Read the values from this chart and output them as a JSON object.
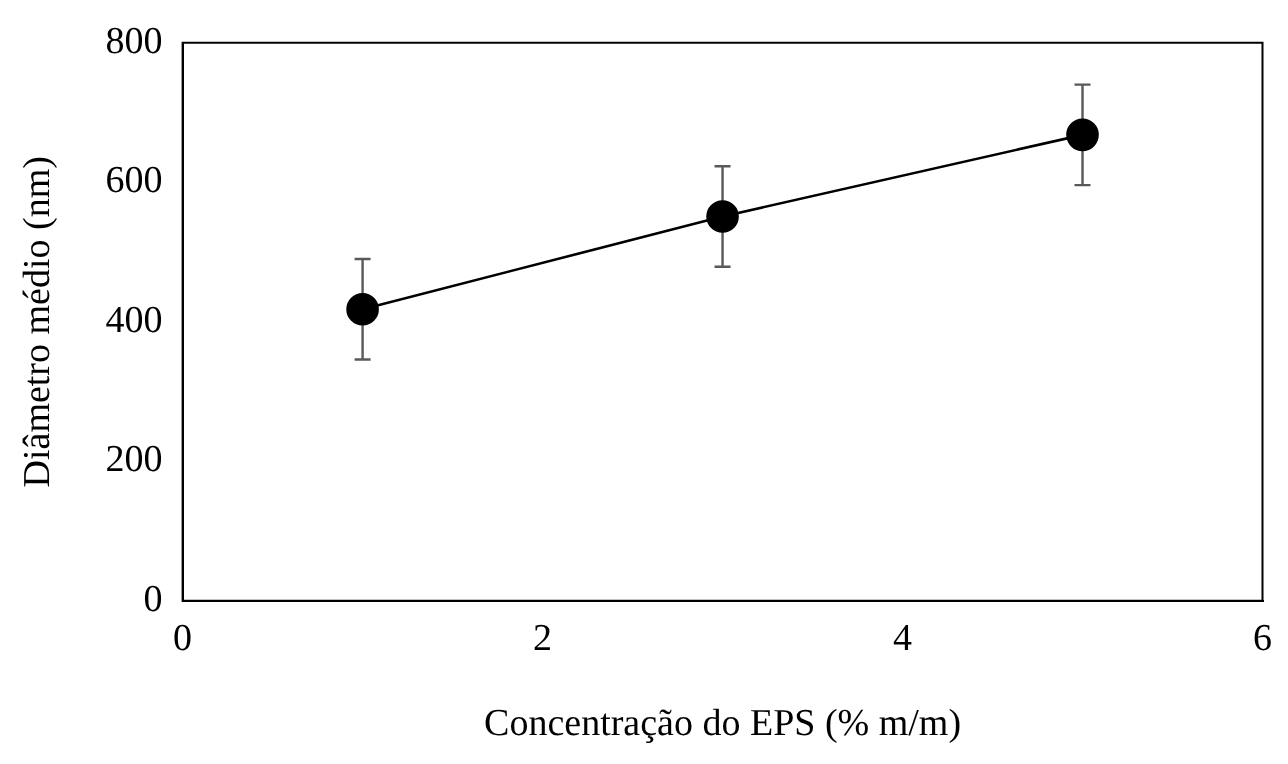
{
  "chart_data": {
    "type": "line",
    "xlabel": "Concentração do EPS (% m/m)",
    "ylabel": "Diâmetro médio (nm)",
    "x": [
      1,
      3,
      5
    ],
    "series": [
      {
        "color": "#000000",
        "values": [
          418,
          551,
          668
        ],
        "errors": [
          72,
          72,
          72
        ]
      }
    ],
    "xlim": [
      0,
      6
    ],
    "xticks": [
      0,
      2,
      4,
      6
    ],
    "ylim": [
      0,
      800
    ],
    "yticks": [
      0,
      200,
      400,
      600,
      800
    ],
    "grid": false,
    "legend": false,
    "marker": "circle",
    "line_style": "solid"
  }
}
